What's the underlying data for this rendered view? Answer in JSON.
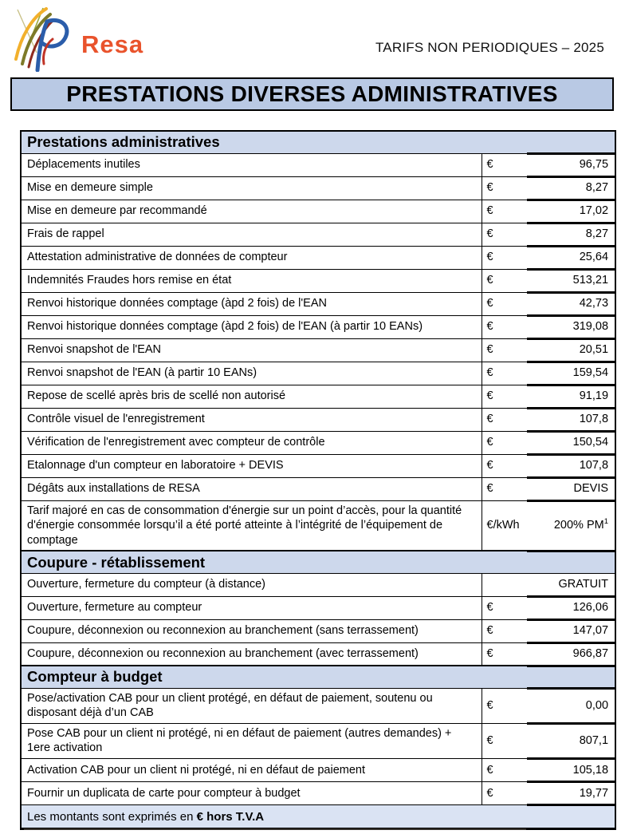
{
  "page": {
    "brand": "Resa",
    "doc_ref": "TARIFS NON PERIODIQUES – 2025",
    "title": "PRESTATIONS DIVERSES ADMINISTRATIVES"
  },
  "table": {
    "sections": [
      {
        "title": "Prestations administratives",
        "rows": [
          {
            "label": "Déplacements inutiles",
            "unit": "€",
            "value": "96,75"
          },
          {
            "label": "Mise en demeure simple",
            "unit": "€",
            "value": "8,27"
          },
          {
            "label": "Mise en demeure par recommandé",
            "unit": "€",
            "value": "17,02"
          },
          {
            "label": "Frais de rappel",
            "unit": "€",
            "value": "8,27"
          },
          {
            "label": "Attestation administrative de données de compteur",
            "unit": "€",
            "value": "25,64"
          },
          {
            "label": "Indemnités Fraudes hors remise en état",
            "unit": "€",
            "value": "513,21"
          },
          {
            "label": "Renvoi historique données comptage (àpd 2 fois) de l'EAN",
            "unit": "€",
            "value": "42,73"
          },
          {
            "label": "Renvoi historique données comptage (àpd 2 fois) de l'EAN (à partir 10 EANs)",
            "unit": "€",
            "value": "319,08"
          },
          {
            "label": "Renvoi snapshot de l'EAN",
            "unit": "€",
            "value": "20,51"
          },
          {
            "label": "Renvoi snapshot de l'EAN (à partir 10 EANs)",
            "unit": "€",
            "value": "159,54"
          },
          {
            "label": "Repose de scellé après bris de scellé non autorisé",
            "unit": "€",
            "value": "91,19"
          },
          {
            "label": "Contrôle visuel de l'enregistrement",
            "unit": "€",
            "value": "107,8"
          },
          {
            "label": "Vérification de l'enregistrement avec compteur de contrôle",
            "unit": "€",
            "value": "150,54"
          },
          {
            "label": "Etalonnage d'un compteur en laboratoire + DEVIS",
            "unit": "€",
            "value": "107,8"
          },
          {
            "label": "Dégâts aux installations de RESA",
            "unit": "€",
            "value": "DEVIS"
          },
          {
            "label": "Tarif majoré en cas de consommation d'énergie sur un point d’accès, pour la quantité d'énergie consommée lorsqu’il a été porté atteinte à l’intégrité de l’équipement de comptage",
            "unit": "€/kWh",
            "value": "200% PM",
            "value_sup": "1"
          }
        ]
      },
      {
        "title": "Coupure - rétablissement",
        "rows": [
          {
            "label": "Ouverture, fermeture du compteur (à distance)",
            "unit": "",
            "value": "GRATUIT",
            "merged": true
          },
          {
            "label": "Ouverture, fermeture au compteur",
            "unit": "€",
            "value": "126,06"
          },
          {
            "label": "Coupure, déconnexion ou reconnexion au branchement (sans terrassement)",
            "unit": "€",
            "value": "147,07"
          },
          {
            "label": "Coupure, déconnexion ou reconnexion au branchement (avec terrassement)",
            "unit": "€",
            "value": "966,87"
          }
        ]
      },
      {
        "title": "Compteur à budget",
        "rows": [
          {
            "label": "Pose/activation CAB pour un client protégé, en défaut de paiement, soutenu ou disposant déjà d’un CAB",
            "unit": "€",
            "value": "0,00"
          },
          {
            "label": "Pose CAB pour un client ni protégé, ni en défaut de paiement (autres demandes) + 1ere activation",
            "unit": "€",
            "value": "807,1"
          },
          {
            "label": "Activation CAB pour un client ni protégé, ni en défaut de paiement",
            "unit": "€",
            "value": "105,18"
          },
          {
            "label": "Fournir un duplicata de carte pour compteur à budget",
            "unit": "€",
            "value": "19,77"
          }
        ]
      }
    ],
    "footer_note": {
      "prefix": "Les montants sont exprimés en ",
      "bold": "€ hors T.V.A"
    }
  },
  "colors": {
    "title_banner_bg": "#b9c9e4",
    "section_header_bg": "#cdd8ec",
    "footer_bg": "#dae3f3",
    "table_border": "#000000",
    "logo_orange": "#e9532c",
    "logo_blue": "#2b5daa",
    "logo_yellow": "#f2b02c",
    "logo_olive": "#7d7a28",
    "logo_dark_red": "#8f2b1e",
    "text": "#1a1a1a"
  }
}
